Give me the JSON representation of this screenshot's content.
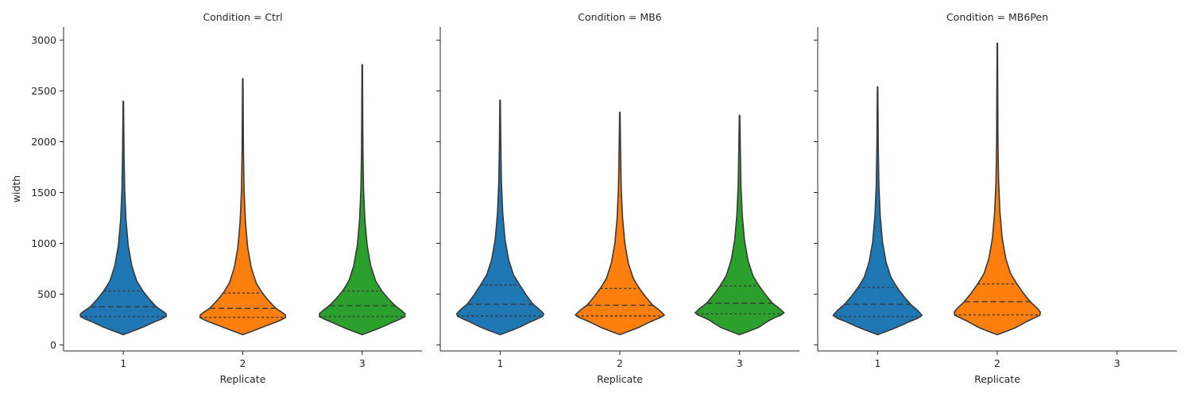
{
  "chart_data": [
    {
      "type": "violin",
      "title": "Condition = Ctrl",
      "xlabel": "Replicate",
      "ylabel": "width",
      "categories": [
        "1",
        "2",
        "3"
      ],
      "yticks": [
        "0",
        "500",
        "1000",
        "1500",
        "2000",
        "2500",
        "3000"
      ],
      "ylim": [
        -60,
        3130
      ],
      "violins": [
        {
          "category": "1",
          "color": "#1f77b4",
          "min": 100,
          "q1": 280,
          "median": 375,
          "q3": 530,
          "max": 2400
        },
        {
          "category": "2",
          "color": "#ff7f0e",
          "min": 100,
          "q1": 270,
          "median": 360,
          "q3": 510,
          "max": 2620
        },
        {
          "category": "3",
          "color": "#2ca02c",
          "min": 100,
          "q1": 280,
          "median": 385,
          "q3": 530,
          "max": 2760
        }
      ]
    },
    {
      "type": "violin",
      "title": "Condition = MB6",
      "xlabel": "Replicate",
      "ylabel": "",
      "categories": [
        "1",
        "2",
        "3"
      ],
      "ylim": [
        -60,
        3130
      ],
      "violins": [
        {
          "category": "1",
          "color": "#1f77b4",
          "min": 100,
          "q1": 285,
          "median": 400,
          "q3": 590,
          "max": 2410
        },
        {
          "category": "2",
          "color": "#ff7f0e",
          "min": 100,
          "q1": 285,
          "median": 390,
          "q3": 555,
          "max": 2290
        },
        {
          "category": "3",
          "color": "#2ca02c",
          "min": 100,
          "q1": 305,
          "median": 410,
          "q3": 580,
          "max": 2260
        }
      ]
    },
    {
      "type": "violin",
      "title": "Condition = MB6Pen",
      "xlabel": "Replicate",
      "ylabel": "",
      "categories": [
        "1",
        "2",
        "3"
      ],
      "ylim": [
        -60,
        3130
      ],
      "violins": [
        {
          "category": "1",
          "color": "#1f77b4",
          "min": 100,
          "q1": 280,
          "median": 400,
          "q3": 565,
          "max": 2540
        },
        {
          "category": "2",
          "color": "#ff7f0e",
          "min": 100,
          "q1": 295,
          "median": 425,
          "q3": 600,
          "max": 2970
        }
      ]
    }
  ]
}
